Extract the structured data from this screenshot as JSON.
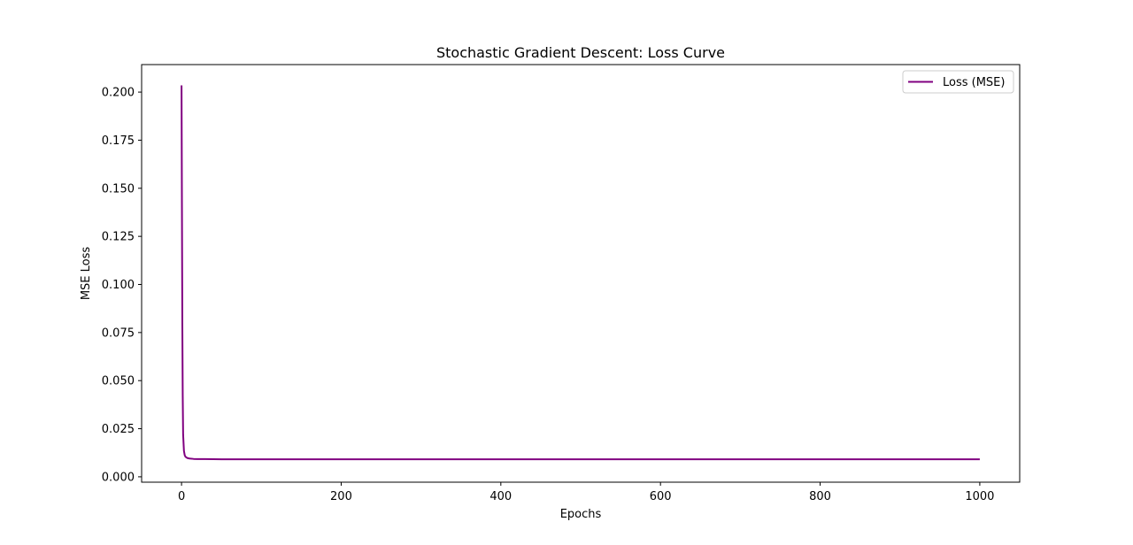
{
  "chart_data": {
    "type": "line",
    "title": "Stochastic Gradient Descent: Loss Curve",
    "xlabel": "Epochs",
    "ylabel": "MSE Loss",
    "xlim": [
      -50,
      1050
    ],
    "ylim": [
      -0.0028,
      0.2143
    ],
    "xticks": [
      0,
      200,
      400,
      600,
      800,
      1000
    ],
    "xtick_labels": [
      "0",
      "200",
      "400",
      "600",
      "800",
      "1000"
    ],
    "yticks": [
      0.0,
      0.025,
      0.05,
      0.075,
      0.1,
      0.125,
      0.15,
      0.175,
      0.2
    ],
    "ytick_labels": [
      "0.000",
      "0.025",
      "0.050",
      "0.075",
      "0.100",
      "0.125",
      "0.150",
      "0.175",
      "0.200"
    ],
    "grid": false,
    "legend_position": "upper right",
    "series": [
      {
        "name": "Loss (MSE)",
        "color": "#800080",
        "x": [
          0,
          0.5,
          1,
          1.5,
          2,
          3,
          4,
          5,
          7,
          10,
          15,
          20,
          30,
          50,
          100,
          200,
          300,
          400,
          500,
          600,
          700,
          800,
          900,
          1000
        ],
        "y": [
          0.2035,
          0.14,
          0.08,
          0.042,
          0.022,
          0.0135,
          0.0112,
          0.0104,
          0.0098,
          0.0095,
          0.0093,
          0.0092,
          0.0092,
          0.0091,
          0.0091,
          0.0091,
          0.0091,
          0.0091,
          0.0091,
          0.0091,
          0.0091,
          0.0091,
          0.0091,
          0.0091
        ]
      }
    ]
  }
}
